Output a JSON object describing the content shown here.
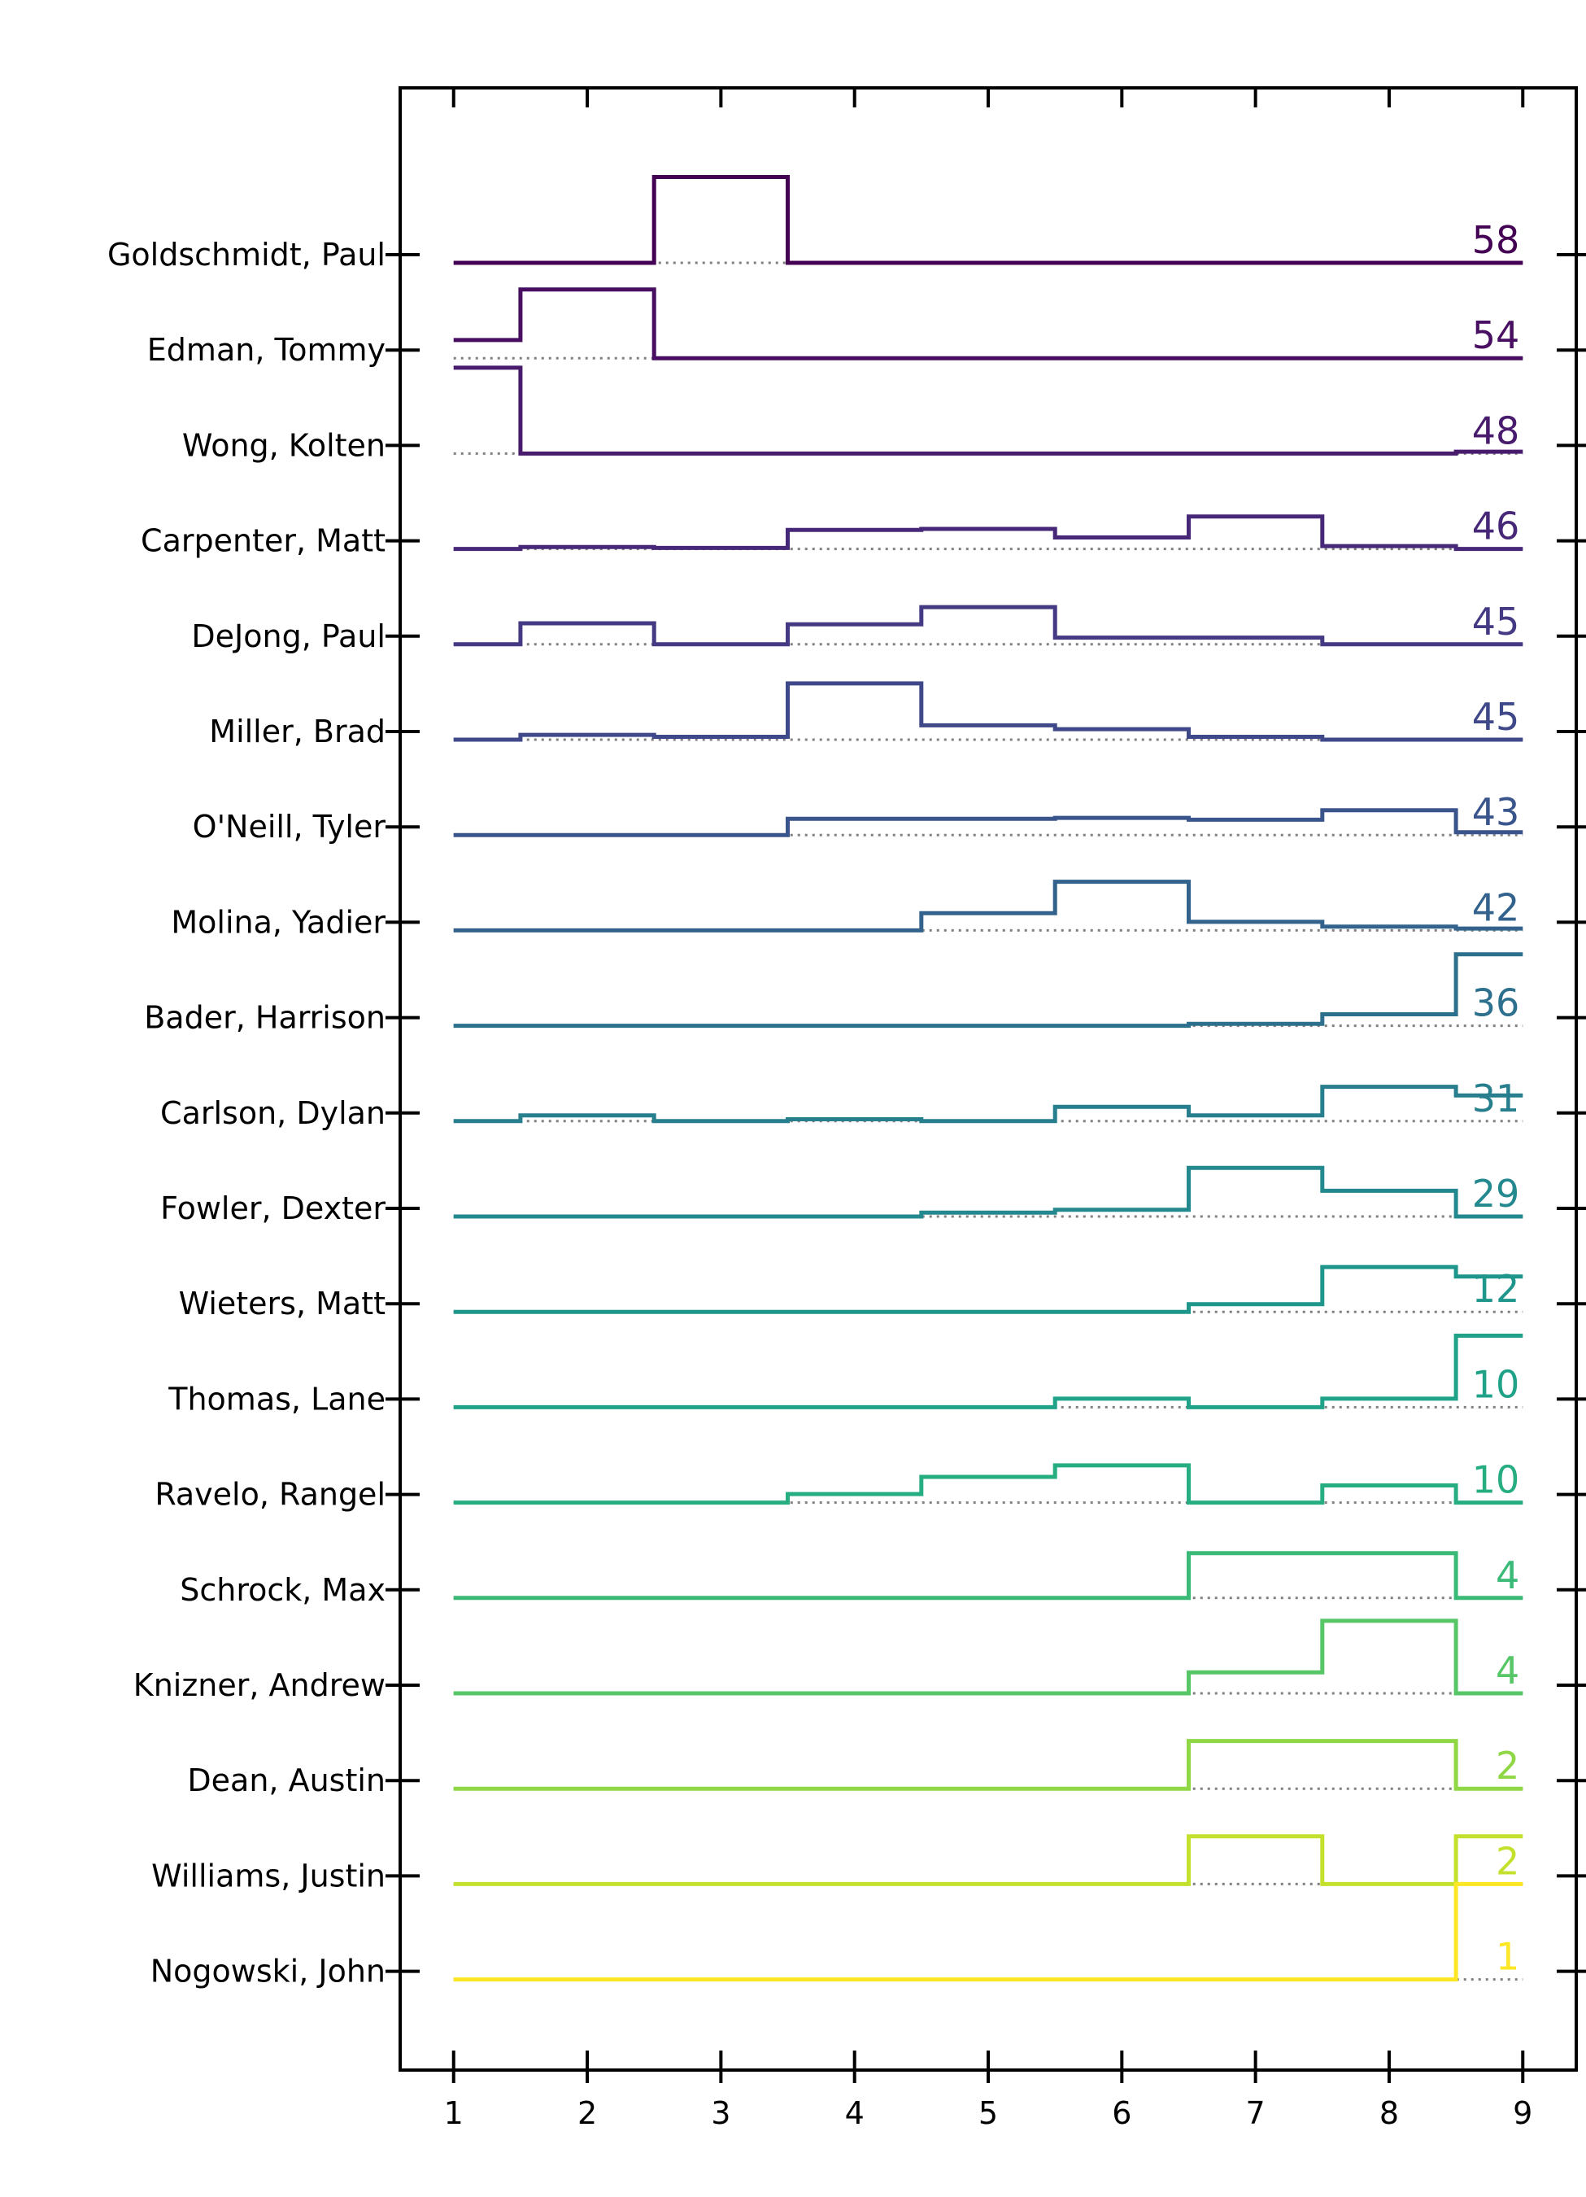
{
  "chart_data": {
    "type": "line",
    "step": true,
    "title": "",
    "xlabel": "",
    "ylabel": "",
    "x": [
      1,
      2,
      3,
      4,
      5,
      6,
      7,
      8,
      9
    ],
    "x_ticks": [
      "1",
      "2",
      "3",
      "4",
      "5",
      "6",
      "7",
      "8",
      "9"
    ],
    "xlim": [
      0.6,
      9.4
    ],
    "y_unit_per_row": 1,
    "grid": false,
    "legend": "none",
    "colormap": "viridis",
    "series": [
      {
        "name": "Goldschmidt, Paul",
        "end_label": "58",
        "color": "#440154",
        "values": [
          0.0,
          0.0,
          0.9,
          0.0,
          0.0,
          0.0,
          0.0,
          0.0,
          0.0
        ]
      },
      {
        "name": "Edman, Tommy",
        "end_label": "54",
        "color": "#470e61",
        "values": [
          0.19,
          0.72,
          0.0,
          0.0,
          0.0,
          0.0,
          0.0,
          0.0,
          0.0
        ]
      },
      {
        "name": "Wong, Kolten",
        "end_label": "48",
        "color": "#481b6d",
        "values": [
          0.9,
          0.0,
          0.0,
          0.0,
          0.0,
          0.0,
          0.0,
          0.0,
          0.02
        ]
      },
      {
        "name": "Carpenter, Matt",
        "end_label": "46",
        "color": "#472878",
        "values": [
          0.0,
          0.02,
          0.01,
          0.2,
          0.21,
          0.12,
          0.34,
          0.03,
          0.0
        ]
      },
      {
        "name": "DeJong, Paul",
        "end_label": "45",
        "color": "#443983",
        "values": [
          0.0,
          0.22,
          0.0,
          0.21,
          0.39,
          0.07,
          0.07,
          0.0,
          0.0
        ]
      },
      {
        "name": "Miller, Brad",
        "end_label": "45",
        "color": "#3f4889",
        "values": [
          0.0,
          0.05,
          0.03,
          0.59,
          0.15,
          0.11,
          0.03,
          0.0,
          0.0
        ]
      },
      {
        "name": "O'Neill, Tyler",
        "end_label": "43",
        "color": "#3a548c",
        "values": [
          0.0,
          0.0,
          0.0,
          0.17,
          0.17,
          0.18,
          0.16,
          0.26,
          0.03
        ]
      },
      {
        "name": "Molina, Yadier",
        "end_label": "42",
        "color": "#33638d",
        "values": [
          0.0,
          0.0,
          0.0,
          0.0,
          0.18,
          0.51,
          0.09,
          0.04,
          0.02
        ]
      },
      {
        "name": "Bader, Harrison",
        "end_label": "36",
        "color": "#2d708e",
        "values": [
          0.0,
          0.0,
          0.0,
          0.0,
          0.0,
          0.0,
          0.02,
          0.12,
          0.75
        ]
      },
      {
        "name": "Carlson, Dylan",
        "end_label": "31",
        "color": "#277f8e",
        "values": [
          0.0,
          0.06,
          0.0,
          0.02,
          0.0,
          0.15,
          0.06,
          0.36,
          0.27
        ]
      },
      {
        "name": "Fowler, Dexter",
        "end_label": "29",
        "color": "#23898e",
        "values": [
          0.0,
          0.0,
          0.0,
          0.0,
          0.04,
          0.07,
          0.51,
          0.27,
          0.0
        ]
      },
      {
        "name": "Wieters, Matt",
        "end_label": "12",
        "color": "#1f968b",
        "values": [
          0.0,
          0.0,
          0.0,
          0.0,
          0.0,
          0.0,
          0.08,
          0.47,
          0.37
        ]
      },
      {
        "name": "Thomas, Lane",
        "end_label": "10",
        "color": "#1fa287",
        "values": [
          0.0,
          0.0,
          0.0,
          0.0,
          0.0,
          0.09,
          0.0,
          0.09,
          0.75
        ]
      },
      {
        "name": "Ravelo, Rangel",
        "end_label": "10",
        "color": "#26ad81",
        "values": [
          0.0,
          0.0,
          0.0,
          0.09,
          0.27,
          0.39,
          0.0,
          0.18,
          0.0
        ]
      },
      {
        "name": "Schrock, Max",
        "end_label": "4",
        "color": "#3aba76",
        "values": [
          0.0,
          0.0,
          0.0,
          0.0,
          0.0,
          0.0,
          0.47,
          0.47,
          0.0
        ]
      },
      {
        "name": "Knizner, Andrew",
        "end_label": "4",
        "color": "#56c667",
        "values": [
          0.0,
          0.0,
          0.0,
          0.0,
          0.0,
          0.0,
          0.22,
          0.76,
          0.0
        ]
      },
      {
        "name": "Dean, Austin",
        "end_label": "2",
        "color": "#8fd744",
        "values": [
          0.0,
          0.0,
          0.0,
          0.0,
          0.0,
          0.0,
          0.5,
          0.5,
          0.0
        ]
      },
      {
        "name": "Williams, Justin",
        "end_label": "2",
        "color": "#c3e12c",
        "values": [
          0.0,
          0.0,
          0.0,
          0.0,
          0.0,
          0.0,
          0.5,
          0.0,
          0.5
        ]
      },
      {
        "name": "Nogowski, John",
        "end_label": "1",
        "color": "#fde725",
        "values": [
          0.0,
          0.0,
          0.0,
          0.0,
          0.0,
          0.0,
          0.0,
          0.0,
          1.0
        ]
      }
    ]
  }
}
